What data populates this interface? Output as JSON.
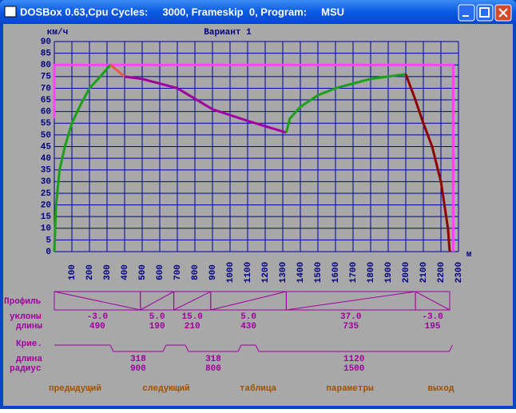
{
  "window": {
    "title": "DOSBox 0.63,Cpu Cycles:     3000, Frameskip  0, Program:     MSU"
  },
  "chart_data": {
    "type": "line",
    "title": "Вариант 1",
    "y_label": "км/ч",
    "x_label": "м",
    "xlim": [
      0,
      2300
    ],
    "ylim": [
      0,
      90
    ],
    "xticks": [
      100,
      200,
      300,
      400,
      500,
      600,
      700,
      800,
      900,
      1000,
      1100,
      1200,
      1300,
      1400,
      1500,
      1600,
      1700,
      1800,
      1900,
      2000,
      2100,
      2200,
      2300
    ],
    "yticks": [
      0,
      5,
      10,
      15,
      20,
      25,
      30,
      35,
      40,
      45,
      50,
      55,
      60,
      65,
      70,
      75,
      80,
      85,
      90
    ],
    "grid": true,
    "series": [
      {
        "color": "#ff40ff",
        "x": [
          0,
          0,
          2270,
          2270
        ],
        "values": [
          57,
          80,
          80,
          0
        ]
      },
      {
        "color": "#1aa01a",
        "x": [
          0,
          10,
          30,
          60,
          100,
          150,
          200,
          250,
          320
        ],
        "values": [
          0,
          20,
          35,
          45,
          55,
          63,
          70,
          74,
          80
        ]
      },
      {
        "color": "#f05a3c",
        "x": [
          320,
          400
        ],
        "values": [
          80,
          75
        ]
      },
      {
        "color": "#a000a0",
        "x": [
          400,
          500,
          700,
          900,
          1100,
          1320
        ],
        "values": [
          75,
          74,
          70,
          61,
          56,
          51
        ]
      },
      {
        "color": "#1aa01a",
        "x": [
          1320,
          1340,
          1400,
          1500,
          1600,
          1800,
          2000
        ],
        "values": [
          51,
          57,
          62,
          67,
          70,
          74,
          76
        ]
      },
      {
        "color": "#900000",
        "x": [
          2000,
          2050,
          2100,
          2150,
          2200,
          2240,
          2250
        ],
        "values": [
          76,
          66,
          55,
          45,
          30,
          10,
          0
        ]
      }
    ]
  },
  "profile": {
    "label": "Профиль",
    "grade_label": "уклоны",
    "length_label": "длины",
    "segments": [
      {
        "grade": "-3.0",
        "length": 490
      },
      {
        "grade": "5.0",
        "length": 190
      },
      {
        "grade": "15.0",
        "length": 210
      },
      {
        "grade": "5.0",
        "length": 430
      },
      {
        "grade": "37.0",
        "length": 735
      },
      {
        "grade": "-3.0",
        "length": 195
      }
    ]
  },
  "curves": {
    "label": "Крие.",
    "length_label": "длина",
    "radius_label": "радиус",
    "items": [
      {
        "length": 318,
        "radius": 900
      },
      {
        "length": 318,
        "radius": 800
      },
      {
        "length": 1120,
        "radius": 1500
      }
    ]
  },
  "menu": [
    "предыдущий",
    "следующий",
    "таблица",
    "параметры",
    "выход"
  ]
}
